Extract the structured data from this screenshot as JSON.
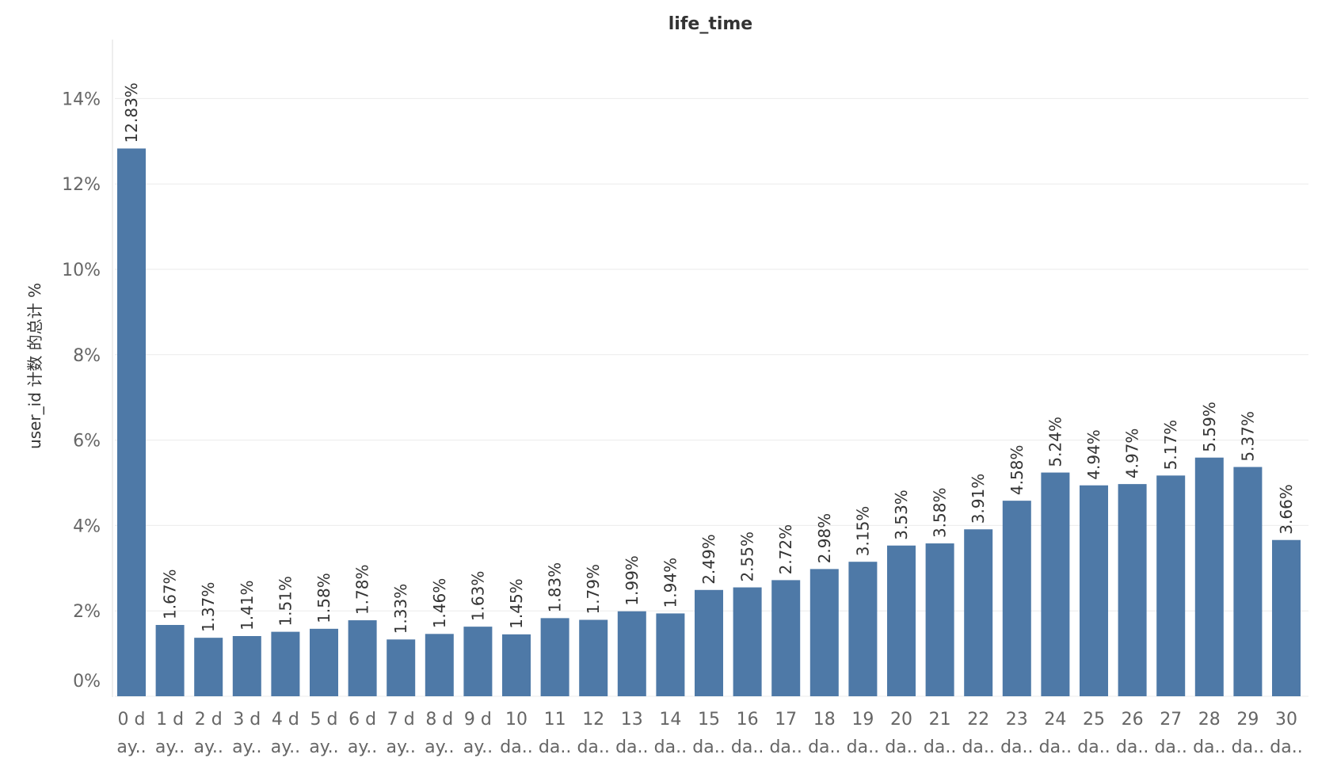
{
  "chart_data": {
    "type": "bar",
    "title": "life_time",
    "xlabel": "",
    "ylabel": "user_id 计数 的总计 %",
    "ylim": [
      0,
      15
    ],
    "yticks": [
      0,
      2,
      4,
      6,
      8,
      10,
      12,
      14
    ],
    "ytick_labels": [
      "0%",
      "2%",
      "4%",
      "6%",
      "8%",
      "10%",
      "12%",
      "14%"
    ],
    "grid": true,
    "bar_color": "#4e79a7",
    "categories": [
      {
        "line1": "0 d",
        "line2": "ay.."
      },
      {
        "line1": "1 d",
        "line2": "ay.."
      },
      {
        "line1": "2 d",
        "line2": "ay.."
      },
      {
        "line1": "3 d",
        "line2": "ay.."
      },
      {
        "line1": "4 d",
        "line2": "ay.."
      },
      {
        "line1": "5 d",
        "line2": "ay.."
      },
      {
        "line1": "6 d",
        "line2": "ay.."
      },
      {
        "line1": "7 d",
        "line2": "ay.."
      },
      {
        "line1": "8 d",
        "line2": "ay.."
      },
      {
        "line1": "9 d",
        "line2": "ay.."
      },
      {
        "line1": "10",
        "line2": "da.."
      },
      {
        "line1": "11",
        "line2": "da.."
      },
      {
        "line1": "12",
        "line2": "da.."
      },
      {
        "line1": "13",
        "line2": "da.."
      },
      {
        "line1": "14",
        "line2": "da.."
      },
      {
        "line1": "15",
        "line2": "da.."
      },
      {
        "line1": "16",
        "line2": "da.."
      },
      {
        "line1": "17",
        "line2": "da.."
      },
      {
        "line1": "18",
        "line2": "da.."
      },
      {
        "line1": "19",
        "line2": "da.."
      },
      {
        "line1": "20",
        "line2": "da.."
      },
      {
        "line1": "21",
        "line2": "da.."
      },
      {
        "line1": "22",
        "line2": "da.."
      },
      {
        "line1": "23",
        "line2": "da.."
      },
      {
        "line1": "24",
        "line2": "da.."
      },
      {
        "line1": "25",
        "line2": "da.."
      },
      {
        "line1": "26",
        "line2": "da.."
      },
      {
        "line1": "27",
        "line2": "da.."
      },
      {
        "line1": "28",
        "line2": "da.."
      },
      {
        "line1": "29",
        "line2": "da.."
      },
      {
        "line1": "30",
        "line2": "da.."
      }
    ],
    "values": [
      12.83,
      1.67,
      1.37,
      1.41,
      1.51,
      1.58,
      1.78,
      1.33,
      1.46,
      1.63,
      1.45,
      1.83,
      1.79,
      1.99,
      1.94,
      2.49,
      2.55,
      2.72,
      2.98,
      3.15,
      3.53,
      3.58,
      3.91,
      4.58,
      5.24,
      4.94,
      4.97,
      5.17,
      5.59,
      5.37,
      3.66
    ],
    "data_labels": [
      "12.83%",
      "1.67%",
      "1.37%",
      "1.41%",
      "1.51%",
      "1.58%",
      "1.78%",
      "1.33%",
      "1.46%",
      "1.63%",
      "1.45%",
      "1.83%",
      "1.79%",
      "1.99%",
      "1.94%",
      "2.49%",
      "2.55%",
      "2.72%",
      "2.98%",
      "3.15%",
      "3.53%",
      "3.58%",
      "3.91%",
      "4.58%",
      "5.24%",
      "4.94%",
      "4.97%",
      "5.17%",
      "5.59%",
      "5.37%",
      "3.66%"
    ]
  }
}
